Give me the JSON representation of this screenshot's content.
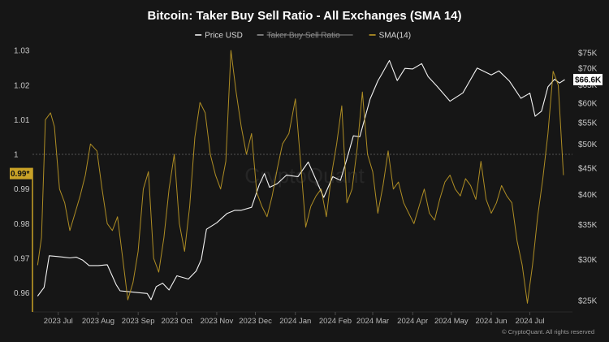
{
  "chart_data": {
    "type": "line",
    "title": "Bitcoin: Taker Buy Sell Ratio - All Exchanges (SMA 14)",
    "legend": [
      {
        "label": "Price USD",
        "color": "#ffffff",
        "struck": false
      },
      {
        "label": "Taker Buy Sell Ratio",
        "color": "#9a9a9a",
        "struck": true
      },
      {
        "label": "SMA(14)",
        "color": "#c9a227",
        "struck": false
      }
    ],
    "legend_position": "top-center",
    "x_ticks": [
      "2023 Jul",
      "2023 Aug",
      "2023 Sep",
      "2023 Oct",
      "2023 Nov",
      "2023 Dec",
      "2024 Jan",
      "2024 Feb",
      "2024 Mar",
      "2024 Apr",
      "2024 May",
      "2024 Jun",
      "2024 Jul"
    ],
    "y_left": {
      "ticks": [
        "1.03",
        "1.02",
        "1.01",
        "1",
        "0.99",
        "0.98",
        "0.97",
        "0.96"
      ],
      "values": [
        1.03,
        1.02,
        1.01,
        1.0,
        0.99,
        0.98,
        0.97,
        0.96
      ],
      "range": [
        0.9545,
        1.0305
      ]
    },
    "y_right": {
      "ticks": [
        "$75K",
        "$70K",
        "$65K",
        "$60K",
        "$55K",
        "$50K",
        "$45K",
        "$40K",
        "$35K",
        "$30K",
        "$25K"
      ],
      "values": [
        75000,
        70000,
        65000,
        60000,
        55000,
        50000,
        45000,
        40000,
        35000,
        30000,
        25000
      ],
      "scale": "log"
    },
    "reference_line": 1.0,
    "current_badges": {
      "ratio": "0.99*",
      "price": "$66.6K"
    },
    "series": [
      {
        "name": "Price USD",
        "axis": "right",
        "color": "#ffffff",
        "x": [
          "2023-06-15",
          "2023-06-20",
          "2023-06-24",
          "2023-06-30",
          "2023-07-05",
          "2023-07-10",
          "2023-07-15",
          "2023-07-20",
          "2023-07-25",
          "2023-08-01",
          "2023-08-08",
          "2023-08-15",
          "2023-08-18",
          "2023-08-25",
          "2023-09-01",
          "2023-09-08",
          "2023-09-11",
          "2023-09-15",
          "2023-09-20",
          "2023-09-25",
          "2023-10-01",
          "2023-10-10",
          "2023-10-16",
          "2023-10-20",
          "2023-10-24",
          "2023-11-01",
          "2023-11-09",
          "2023-11-15",
          "2023-11-20",
          "2023-11-28",
          "2023-12-04",
          "2023-12-08",
          "2023-12-12",
          "2023-12-18",
          "2023-12-25",
          "2024-01-03",
          "2024-01-11",
          "2024-01-17",
          "2024-01-23",
          "2024-01-30",
          "2024-02-05",
          "2024-02-10",
          "2024-02-15",
          "2024-02-20",
          "2024-02-28",
          "2024-03-05",
          "2024-03-08",
          "2024-03-14",
          "2024-03-20",
          "2024-03-26",
          "2024-04-01",
          "2024-04-08",
          "2024-04-13",
          "2024-04-20",
          "2024-04-30",
          "2024-05-10",
          "2024-05-15",
          "2024-05-21",
          "2024-06-01",
          "2024-06-07",
          "2024-06-15",
          "2024-06-24",
          "2024-07-01",
          "2024-07-05",
          "2024-07-10",
          "2024-07-15",
          "2024-07-20",
          "2024-07-24",
          "2024-07-28"
        ],
        "values": [
          25500,
          26500,
          30500,
          30400,
          30300,
          30200,
          30300,
          29900,
          29200,
          29200,
          29300,
          26800,
          26100,
          26000,
          25900,
          25800,
          25100,
          26600,
          27000,
          26200,
          27900,
          27500,
          28500,
          30000,
          34300,
          35300,
          36800,
          37300,
          37300,
          37800,
          41800,
          43900,
          41300,
          42000,
          43600,
          43300,
          46200,
          42700,
          39500,
          43300,
          42600,
          46900,
          51900,
          51700,
          61100,
          66200,
          68200,
          72500,
          66300,
          70000,
          69800,
          71500,
          67500,
          64600,
          60500,
          62800,
          66000,
          70100,
          68000,
          69200,
          66200,
          61300,
          62700,
          56600,
          57900,
          64500,
          66700,
          65600,
          66600
        ]
      },
      {
        "name": "SMA(14)",
        "axis": "left",
        "color": "#c9a227",
        "x": [
          "2023-06-15",
          "2023-06-18",
          "2023-06-21",
          "2023-06-25",
          "2023-06-28",
          "2023-07-02",
          "2023-07-06",
          "2023-07-10",
          "2023-07-14",
          "2023-07-18",
          "2023-07-22",
          "2023-07-26",
          "2023-07-31",
          "2023-08-04",
          "2023-08-08",
          "2023-08-12",
          "2023-08-16",
          "2023-08-20",
          "2023-08-24",
          "2023-08-28",
          "2023-09-01",
          "2023-09-05",
          "2023-09-09",
          "2023-09-13",
          "2023-09-17",
          "2023-09-21",
          "2023-09-25",
          "2023-09-29",
          "2023-10-03",
          "2023-10-07",
          "2023-10-11",
          "2023-10-15",
          "2023-10-19",
          "2023-10-23",
          "2023-10-27",
          "2023-10-31",
          "2023-11-04",
          "2023-11-08",
          "2023-11-12",
          "2023-11-16",
          "2023-11-20",
          "2023-11-24",
          "2023-11-28",
          "2023-12-02",
          "2023-12-06",
          "2023-12-10",
          "2023-12-14",
          "2023-12-18",
          "2023-12-22",
          "2023-12-27",
          "2024-01-01",
          "2024-01-05",
          "2024-01-09",
          "2024-01-13",
          "2024-01-17",
          "2024-01-21",
          "2024-01-25",
          "2024-01-29",
          "2024-02-02",
          "2024-02-06",
          "2024-02-10",
          "2024-02-14",
          "2024-02-18",
          "2024-02-22",
          "2024-02-26",
          "2024-03-01",
          "2024-03-05",
          "2024-03-09",
          "2024-03-13",
          "2024-03-17",
          "2024-03-21",
          "2024-03-25",
          "2024-03-29",
          "2024-04-02",
          "2024-04-06",
          "2024-04-10",
          "2024-04-14",
          "2024-04-18",
          "2024-04-22",
          "2024-04-26",
          "2024-04-30",
          "2024-05-04",
          "2024-05-08",
          "2024-05-12",
          "2024-05-16",
          "2024-05-20",
          "2024-05-24",
          "2024-05-28",
          "2024-06-01",
          "2024-06-05",
          "2024-06-09",
          "2024-06-13",
          "2024-06-17",
          "2024-06-21",
          "2024-06-25",
          "2024-06-29",
          "2024-07-03",
          "2024-07-07",
          "2024-07-11",
          "2024-07-15",
          "2024-07-19",
          "2024-07-23",
          "2024-07-27"
        ],
        "values": [
          0.968,
          0.976,
          1.01,
          1.012,
          1.008,
          0.99,
          0.986,
          0.978,
          0.983,
          0.988,
          0.994,
          1.003,
          1.001,
          0.99,
          0.98,
          0.978,
          0.982,
          0.97,
          0.958,
          0.963,
          0.972,
          0.99,
          0.995,
          0.97,
          0.966,
          0.976,
          0.99,
          1.0,
          0.98,
          0.972,
          0.985,
          1.005,
          1.015,
          1.012,
          1.0,
          0.994,
          0.99,
          0.998,
          1.03,
          1.018,
          1.008,
          1.0,
          1.006,
          0.989,
          0.985,
          0.982,
          0.988,
          0.996,
          1.003,
          1.006,
          1.016,
          0.998,
          0.979,
          0.985,
          0.988,
          0.99,
          0.982,
          0.994,
          1.003,
          1.014,
          0.986,
          0.99,
          1.002,
          1.018,
          1.0,
          0.995,
          0.983,
          0.991,
          1.001,
          0.99,
          0.992,
          0.986,
          0.983,
          0.98,
          0.985,
          0.99,
          0.983,
          0.981,
          0.987,
          0.992,
          0.994,
          0.99,
          0.988,
          0.993,
          0.991,
          0.987,
          0.998,
          0.987,
          0.983,
          0.986,
          0.991,
          0.988,
          0.986,
          0.975,
          0.968,
          0.957,
          0.968,
          0.982,
          0.993,
          1.006,
          1.024,
          1.02,
          0.994
        ]
      }
    ]
  },
  "watermark": "CryptoQuant",
  "copyright": "© CryptoQuant. All rights reserved"
}
